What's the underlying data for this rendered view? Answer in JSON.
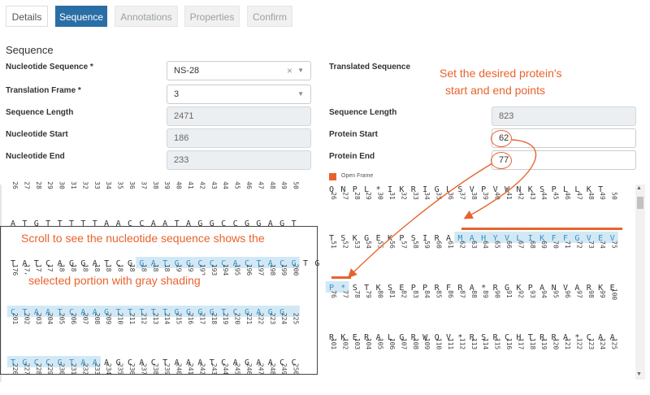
{
  "tabs": [
    "Details",
    "Sequence",
    "Annotations",
    "Properties",
    "Confirm"
  ],
  "section_title": "Sequence",
  "labels": {
    "nucleotide_sequence": "Nucleotide Sequence *",
    "translation_frame": "Translation Frame *",
    "sequence_length": "Sequence Length",
    "nucleotide_start": "Nucleotide Start",
    "nucleotide_end": "Nucleotide End",
    "translated_sequence": "Translated Sequence",
    "protein_sequence_length": "Sequence Length",
    "protein_start": "Protein Start",
    "protein_end": "Protein End"
  },
  "values": {
    "nucleotide_sequence": "NS-28",
    "translation_frame": "3",
    "sequence_length": "2471",
    "nucleotide_start": "186",
    "nucleotide_end": "233",
    "protein_sequence_length": "823",
    "protein_start": "62",
    "protein_end": "77"
  },
  "icons": {
    "clear": "clear-icon",
    "caret": "chevron-down-icon"
  },
  "legend": "Open Frame",
  "callouts": {
    "right": [
      "Set the desired protein's",
      "start and end points"
    ],
    "left": [
      "Scroll to see the nucleotide sequence shows the",
      "selected portion with gray shading"
    ]
  },
  "colors": {
    "accent": "#e8632c",
    "tab_active": "#2a6ea6",
    "highlight": "#d2e9f5",
    "seq_highlight_text": "#3a8fc8"
  },
  "nucleotide_panel": {
    "top_numbers": [
      "26",
      "27",
      "28",
      "29",
      "30",
      "31",
      "32",
      "33",
      "34",
      "35",
      "36",
      "37",
      "38",
      "39",
      "40",
      "41",
      "42",
      "43",
      "44",
      "45",
      "46",
      "47",
      "48",
      "49",
      "50"
    ],
    "partial_row": "ATGTTTTTAACCAATAGGCCGGAGT",
    "rows": [
      {
        "seq": "TATCAGGATCGGATGGCCCACTACGTG",
        "start": 176,
        "hl_start": 11,
        "hl_len": 14
      },
      {
        "seq": "CTAATCAAGTTTTTGGGGTCGAGG",
        "start": 201,
        "hl_start": 0,
        "hl_len": 25
      },
      {
        "seq": "TGCCGTAAAGCACTAAATCAGAACC",
        "start": 226,
        "hl_start": 0,
        "hl_len": 8
      }
    ]
  },
  "protein_panel": {
    "top_row": {
      "seq": "QNPL*IKRIGLSVPVWNKSPLLKT",
      "start": 26
    },
    "rows": [
      {
        "seq": "TSKGEKPSIRAMAHYVLIKFFGVEV",
        "start": 51,
        "hl_start": 11,
        "hl_len": 14
      },
      {
        "seq": "P*STKSEPPRFRA*RGKPANVARKE",
        "start": 76,
        "hl_start": 0,
        "hl_len": 2
      },
      {
        "seq": "RKERALGRWQV*RSRCHTRRA*CAA",
        "start": 101
      }
    ]
  }
}
